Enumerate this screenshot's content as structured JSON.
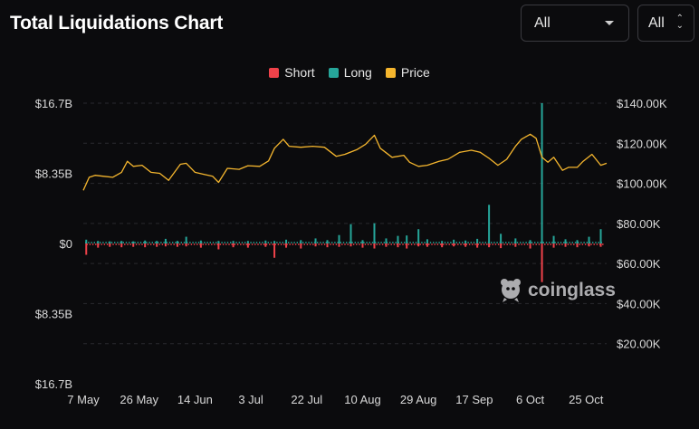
{
  "header": {
    "title": "Total Liquidations Chart",
    "range_select": "All",
    "unit_select": "All"
  },
  "legend": [
    {
      "label": "Short",
      "color": "#f0424a"
    },
    {
      "label": "Long",
      "color": "#26a69a"
    },
    {
      "label": "Price",
      "color": "#f5b62e"
    }
  ],
  "watermark": "coinglass",
  "chart_data": {
    "type": "bar",
    "x_ticks": [
      "7 May",
      "26 May",
      "14 Jun",
      "3 Jul",
      "22 Jul",
      "10 Aug",
      "29 Aug",
      "17 Sep",
      "6 Oct",
      "25 Oct"
    ],
    "x_range": [
      "2025-05-07",
      "2025-11-01"
    ],
    "left_axis": {
      "ticks": [
        "$16.7B",
        "$8.35B",
        "$0",
        "$8.35B",
        "$16.7B"
      ],
      "range": [
        -16.7,
        16.7
      ],
      "unit": "B USD"
    },
    "right_axis": {
      "ticks": [
        "$140.00K",
        "$120.00K",
        "$100.00K",
        "$80.00K",
        "$60.00K",
        "$40.00K",
        "$20.00K"
      ],
      "range": [
        0,
        140000
      ]
    },
    "grid": true,
    "legend_position": "top-center",
    "series": [
      {
        "name": "Long",
        "color": "#26a69a",
        "values": [
          [
            "2025-05-08",
            0.45
          ],
          [
            "2025-05-12",
            0.3
          ],
          [
            "2025-05-16",
            0.25
          ],
          [
            "2025-05-20",
            0.3
          ],
          [
            "2025-05-24",
            0.25
          ],
          [
            "2025-05-28",
            0.35
          ],
          [
            "2025-06-01",
            0.3
          ],
          [
            "2025-06-04",
            0.55
          ],
          [
            "2025-06-08",
            0.3
          ],
          [
            "2025-06-11",
            0.8
          ],
          [
            "2025-06-16",
            0.35
          ],
          [
            "2025-06-22",
            0.3
          ],
          [
            "2025-06-27",
            0.3
          ],
          [
            "2025-07-02",
            0.3
          ],
          [
            "2025-07-08",
            0.35
          ],
          [
            "2025-07-11",
            0.3
          ],
          [
            "2025-07-15",
            0.45
          ],
          [
            "2025-07-20",
            0.4
          ],
          [
            "2025-07-25",
            0.6
          ],
          [
            "2025-07-29",
            0.4
          ],
          [
            "2025-08-02",
            1.0
          ],
          [
            "2025-08-06",
            2.3
          ],
          [
            "2025-08-10",
            0.4
          ],
          [
            "2025-08-14",
            2.4
          ],
          [
            "2025-08-18",
            0.6
          ],
          [
            "2025-08-22",
            0.9
          ],
          [
            "2025-08-25",
            0.95
          ],
          [
            "2025-08-29",
            1.7
          ],
          [
            "2025-09-01",
            0.5
          ],
          [
            "2025-09-06",
            0.3
          ],
          [
            "2025-09-10",
            0.45
          ],
          [
            "2025-09-14",
            0.35
          ],
          [
            "2025-09-18",
            0.55
          ],
          [
            "2025-09-22",
            4.6
          ],
          [
            "2025-09-26",
            1.15
          ],
          [
            "2025-10-01",
            0.6
          ],
          [
            "2025-10-06",
            0.4
          ],
          [
            "2025-10-10",
            16.7
          ],
          [
            "2025-10-14",
            0.9
          ],
          [
            "2025-10-18",
            0.5
          ],
          [
            "2025-10-22",
            0.4
          ],
          [
            "2025-10-26",
            0.8
          ],
          [
            "2025-10-30",
            1.7
          ]
        ]
      },
      {
        "name": "Short",
        "color": "#f0424a",
        "values": [
          [
            "2025-05-08",
            -1.35
          ],
          [
            "2025-05-12",
            -0.5
          ],
          [
            "2025-05-16",
            -0.4
          ],
          [
            "2025-05-20",
            -0.45
          ],
          [
            "2025-05-24",
            -0.4
          ],
          [
            "2025-05-28",
            -0.45
          ],
          [
            "2025-06-01",
            -0.4
          ],
          [
            "2025-06-04",
            -0.35
          ],
          [
            "2025-06-08",
            -0.4
          ],
          [
            "2025-06-11",
            -0.35
          ],
          [
            "2025-06-16",
            -0.5
          ],
          [
            "2025-06-22",
            -0.7
          ],
          [
            "2025-06-27",
            -0.45
          ],
          [
            "2025-07-02",
            -0.5
          ],
          [
            "2025-07-08",
            -0.4
          ],
          [
            "2025-07-11",
            -1.7
          ],
          [
            "2025-07-15",
            -0.5
          ],
          [
            "2025-07-20",
            -0.6
          ],
          [
            "2025-07-25",
            -0.35
          ],
          [
            "2025-07-29",
            -0.45
          ],
          [
            "2025-08-02",
            -0.4
          ],
          [
            "2025-08-06",
            -0.35
          ],
          [
            "2025-08-10",
            -0.5
          ],
          [
            "2025-08-14",
            -0.6
          ],
          [
            "2025-08-18",
            -0.4
          ],
          [
            "2025-08-22",
            -0.45
          ],
          [
            "2025-08-25",
            -0.6
          ],
          [
            "2025-08-29",
            -0.35
          ],
          [
            "2025-09-01",
            -0.4
          ],
          [
            "2025-09-06",
            -0.45
          ],
          [
            "2025-09-10",
            -0.35
          ],
          [
            "2025-09-14",
            -0.4
          ],
          [
            "2025-09-18",
            -0.5
          ],
          [
            "2025-09-22",
            -0.45
          ],
          [
            "2025-09-26",
            -0.55
          ],
          [
            "2025-10-01",
            -0.4
          ],
          [
            "2025-10-06",
            -0.6
          ],
          [
            "2025-10-10",
            -4.6
          ],
          [
            "2025-10-14",
            -0.5
          ],
          [
            "2025-10-18",
            -0.4
          ],
          [
            "2025-10-22",
            -0.45
          ],
          [
            "2025-10-26",
            -0.35
          ],
          [
            "2025-10-30",
            -0.4
          ]
        ]
      },
      {
        "name": "Price",
        "color": "#f5b62e",
        "values": [
          [
            "2025-05-07",
            96500
          ],
          [
            "2025-05-09",
            103000
          ],
          [
            "2025-05-11",
            104000
          ],
          [
            "2025-05-14",
            103500
          ],
          [
            "2025-05-17",
            103000
          ],
          [
            "2025-05-20",
            105500
          ],
          [
            "2025-05-22",
            111000
          ],
          [
            "2025-05-24",
            108500
          ],
          [
            "2025-05-27",
            109000
          ],
          [
            "2025-05-30",
            105500
          ],
          [
            "2025-06-02",
            105000
          ],
          [
            "2025-06-05",
            101500
          ],
          [
            "2025-06-09",
            109500
          ],
          [
            "2025-06-11",
            110000
          ],
          [
            "2025-06-14",
            105500
          ],
          [
            "2025-06-17",
            104500
          ],
          [
            "2025-06-20",
            103500
          ],
          [
            "2025-06-22",
            100500
          ],
          [
            "2025-06-25",
            107500
          ],
          [
            "2025-06-29",
            107000
          ],
          [
            "2025-07-02",
            108800
          ],
          [
            "2025-07-06",
            108500
          ],
          [
            "2025-07-09",
            111200
          ],
          [
            "2025-07-11",
            117500
          ],
          [
            "2025-07-14",
            122000
          ],
          [
            "2025-07-16",
            118500
          ],
          [
            "2025-07-20",
            118000
          ],
          [
            "2025-07-24",
            118500
          ],
          [
            "2025-07-28",
            118000
          ],
          [
            "2025-08-01",
            113500
          ],
          [
            "2025-08-04",
            114500
          ],
          [
            "2025-08-08",
            116800
          ],
          [
            "2025-08-11",
            119500
          ],
          [
            "2025-08-14",
            124000
          ],
          [
            "2025-08-16",
            117500
          ],
          [
            "2025-08-20",
            113000
          ],
          [
            "2025-08-24",
            114000
          ],
          [
            "2025-08-26",
            110500
          ],
          [
            "2025-08-29",
            108500
          ],
          [
            "2025-09-01",
            109000
          ],
          [
            "2025-09-05",
            111000
          ],
          [
            "2025-09-08",
            112000
          ],
          [
            "2025-09-12",
            115500
          ],
          [
            "2025-09-16",
            116500
          ],
          [
            "2025-09-19",
            115500
          ],
          [
            "2025-09-22",
            112500
          ],
          [
            "2025-09-25",
            109000
          ],
          [
            "2025-09-28",
            112000
          ],
          [
            "2025-10-01",
            118500
          ],
          [
            "2025-10-03",
            122000
          ],
          [
            "2025-10-06",
            124500
          ],
          [
            "2025-10-08",
            122500
          ],
          [
            "2025-10-10",
            113000
          ],
          [
            "2025-10-12",
            110500
          ],
          [
            "2025-10-14",
            113000
          ],
          [
            "2025-10-17",
            106500
          ],
          [
            "2025-10-19",
            108000
          ],
          [
            "2025-10-22",
            108000
          ],
          [
            "2025-10-24",
            111000
          ],
          [
            "2025-10-27",
            114500
          ],
          [
            "2025-10-30",
            109000
          ],
          [
            "2025-11-01",
            110000
          ]
        ]
      }
    ]
  }
}
